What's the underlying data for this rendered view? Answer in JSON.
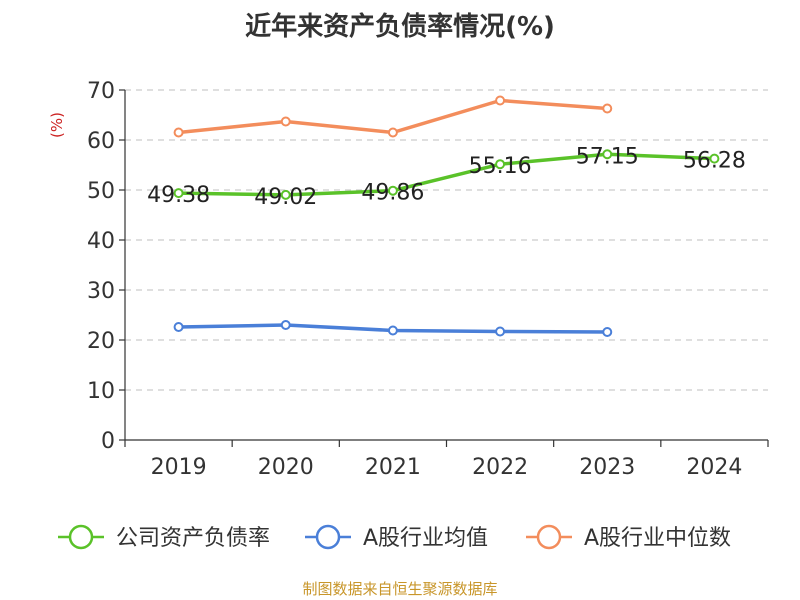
{
  "title": "近年来资产负债率情况(%)",
  "footer": "制图数据来自恒生聚源数据库",
  "chart_data": {
    "type": "line",
    "title": "近年来资产负债率情况(%)",
    "ylabel": "(%)",
    "ylim": [
      0,
      70
    ],
    "yticks": [
      0,
      10,
      20,
      30,
      40,
      50,
      60,
      70
    ],
    "categories": [
      "2019",
      "2020",
      "2021",
      "2022",
      "2023",
      "2024"
    ],
    "grid": true,
    "legend_position": "bottom",
    "series": [
      {
        "name": "公司资产负债率",
        "color": "#5ac229",
        "values": [
          49.38,
          49.02,
          49.86,
          55.16,
          57.15,
          56.28
        ],
        "labels": [
          "49.38",
          "49.02",
          "49.86",
          "55.16",
          "57.15",
          "56.28"
        ],
        "show_labels": true
      },
      {
        "name": "A股行业均值",
        "color": "#4a7fd8",
        "values": [
          22.6,
          23.0,
          21.9,
          21.7,
          21.6,
          null
        ],
        "show_labels": false
      },
      {
        "name": "A股行业中位数",
        "color": "#f38d5c",
        "values": [
          61.5,
          63.7,
          61.5,
          67.9,
          66.3,
          null
        ],
        "show_labels": false
      }
    ]
  },
  "colors": {
    "axis": "#333333",
    "grid": "#cccccc",
    "unit_label": "#cc2222"
  }
}
